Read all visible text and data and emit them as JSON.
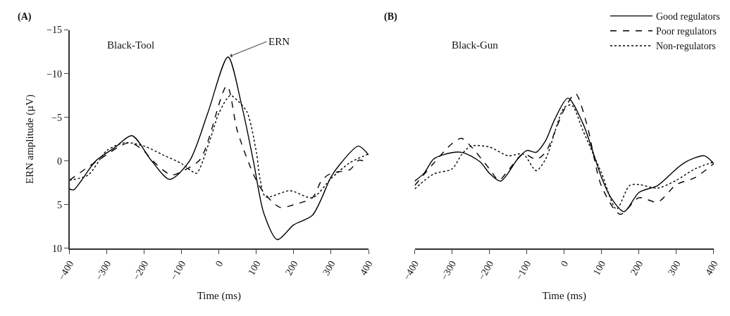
{
  "chart_data": [
    {
      "type": "line",
      "annotations": [
        "(A)",
        "Black-Tool",
        {
          "text": "ERN",
          "x": 24,
          "y": -11.9
        }
      ],
      "ylabel": "ERN amplitude (µV)",
      "xlabel": "Time (ms)",
      "xlim": [
        -400,
        400
      ],
      "xticks": [
        {
          "value": -400,
          "label": "−400"
        },
        {
          "value": -300,
          "label": "−300"
        },
        {
          "value": -200,
          "label": "−200"
        },
        {
          "value": -100,
          "label": "−100"
        },
        0,
        100,
        200,
        300,
        400
      ],
      "ylim": [
        10,
        -15
      ],
      "yticks": [
        10,
        5,
        0,
        {
          "value": -5,
          "label": "−5"
        },
        {
          "value": -10,
          "label": "−10"
        },
        {
          "value": -15,
          "label": "−15"
        }
      ],
      "legend": false,
      "marker": "none",
      "series": [
        {
          "color": "#000000",
          "line_style": "solid",
          "x": [
            -400,
            -389,
            -330,
            -280,
            -233,
            -180,
            -132,
            -79,
            -30,
            24,
            60,
            92,
            120,
            156,
            200,
            250,
            300,
            325,
            373,
            400
          ],
          "values": [
            3.2,
            3.3,
            0,
            -1.5,
            -2.9,
            0,
            2.1,
            0,
            -5.5,
            -11.9,
            -6.5,
            0,
            6,
            9.0,
            7.3,
            6.2,
            1.8,
            0.3,
            -1.7,
            -0.7
          ]
        },
        {
          "color": "#000000",
          "line_style": "dashed",
          "x": [
            -400,
            -326,
            -239,
            -200,
            -177,
            -128,
            -100,
            -50,
            21,
            50,
            110,
            163,
            200,
            250,
            275,
            300,
            325,
            350,
            375,
            400
          ],
          "values": [
            2.2,
            0,
            -2.1,
            -1.1,
            0,
            1.6,
            1.2,
            -0.2,
            -8.6,
            -3.3,
            3.0,
            5.3,
            5.0,
            4.2,
            2.2,
            1.4,
            1.2,
            1.0,
            -0.1,
            0.3
          ]
        },
        {
          "color": "#000000",
          "line_style": "dotted",
          "x": [
            -400,
            -350,
            -300,
            -250,
            -200,
            -150,
            -100,
            -75,
            -60,
            -25,
            0,
            30,
            50,
            75,
            100,
            110,
            125,
            190,
            250,
            300,
            350,
            400
          ],
          "values": [
            2.2,
            1.6,
            -1.2,
            -2.1,
            -1.7,
            -0.7,
            0.3,
            1.1,
            1.4,
            -2.3,
            -5.5,
            -7.5,
            -6.9,
            -5.6,
            -1.0,
            2.1,
            4.1,
            3.4,
            4.2,
            2.0,
            0.2,
            -0.8
          ]
        }
      ]
    },
    {
      "type": "line",
      "annotations": [
        "(B)",
        "Black-Gun"
      ],
      "xlabel": "Time (ms)",
      "tick_labels": "x",
      "xlim": [
        -400,
        400
      ],
      "xticks": [
        {
          "value": -400,
          "label": "−400"
        },
        {
          "value": -300,
          "label": "−300"
        },
        {
          "value": -200,
          "label": "−200"
        },
        {
          "value": -100,
          "label": "−100"
        },
        0,
        100,
        200,
        300,
        400
      ],
      "ylim": [
        10,
        -15
      ],
      "legend": "top right",
      "marker": "none",
      "series": [
        {
          "name": "Good regulators",
          "color": "#000000",
          "line_style": "solid",
          "x": [
            -400,
            -375,
            -350,
            -325,
            -275,
            -225,
            -200,
            -170,
            -125,
            -100,
            -75,
            -50,
            -25,
            10,
            50,
            100,
            125,
            160,
            200,
            250,
            300,
            325,
            375,
            400
          ],
          "values": [
            2.3,
            1.4,
            -0.2,
            -0.7,
            -1.0,
            0.1,
            1.4,
            2.3,
            -0.2,
            -1.2,
            -1.0,
            -2.3,
            -4.8,
            -7.2,
            -4.3,
            1.9,
            4.2,
            5.8,
            3.6,
            2.8,
            0.9,
            0.1,
            -0.6,
            0.3
          ]
        },
        {
          "name": "Poor regulators",
          "color": "#000000",
          "line_style": "dashed",
          "x": [
            -400,
            -350,
            -300,
            -275,
            -250,
            -200,
            -175,
            -150,
            -110,
            -75,
            -50,
            0,
            30,
            60,
            100,
            150,
            200,
            250,
            300,
            350,
            400
          ],
          "values": [
            2.8,
            0.3,
            -2.0,
            -2.6,
            -1.7,
            0.9,
            2.2,
            1.1,
            -0.8,
            -0.2,
            -1.0,
            -5.9,
            -7.7,
            -4.3,
            2.9,
            6.1,
            4.2,
            4.7,
            2.7,
            1.9,
            0.3
          ]
        },
        {
          "name": "Non-regulators",
          "color": "#000000",
          "line_style": "dotted",
          "x": [
            -400,
            -350,
            -300,
            -275,
            -250,
            -200,
            -150,
            -110,
            -75,
            -50,
            0,
            20,
            50,
            100,
            140,
            175,
            200,
            250,
            300,
            350,
            400
          ],
          "values": [
            3.2,
            1.5,
            0.9,
            -0.7,
            -1.7,
            -1.6,
            -0.6,
            -0.8,
            1.1,
            -0.2,
            -6.1,
            -6.4,
            -3.5,
            1.4,
            5.5,
            2.8,
            2.7,
            3.1,
            2.2,
            0.9,
            0.1
          ]
        }
      ]
    }
  ]
}
